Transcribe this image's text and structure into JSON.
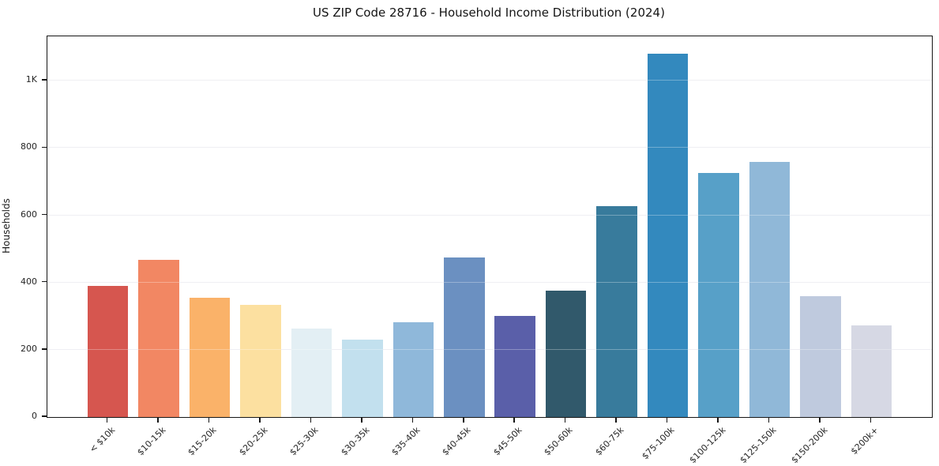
{
  "chart_data": {
    "type": "bar",
    "title": "US ZIP Code 28716 - Household Income Distribution (2024)",
    "xlabel": "",
    "ylabel": "Households",
    "categories": [
      "< $10k",
      "$10-15k",
      "$15-20k",
      "$20-25k",
      "$25-30k",
      "$30-35k",
      "$35-40k",
      "$40-45k",
      "$45-50k",
      "$50-60k",
      "$60-75k",
      "$75-100k",
      "$100-125k",
      "$125-150k",
      "$150-200k",
      "$200k+"
    ],
    "values": [
      390,
      467,
      355,
      334,
      263,
      230,
      282,
      475,
      300,
      376,
      627,
      1080,
      726,
      758,
      360,
      272
    ],
    "bar_colors": [
      "#d6564f",
      "#f28763",
      "#fab269",
      "#fce0a0",
      "#e3eff4",
      "#c2e0ee",
      "#8fb8da",
      "#6b90c1",
      "#5a5fa9",
      "#31596b",
      "#387b9c",
      "#3389be",
      "#57a0c8",
      "#90b8d8",
      "#bfcade",
      "#d6d8e4"
    ],
    "ylim": [
      0,
      1132
    ],
    "yticks": [
      {
        "value": 0,
        "label": "0"
      },
      {
        "value": 200,
        "label": "200"
      },
      {
        "value": 400,
        "label": "400"
      },
      {
        "value": 600,
        "label": "600"
      },
      {
        "value": 800,
        "label": "800"
      },
      {
        "value": 1000,
        "label": "1K"
      }
    ],
    "grid": "horizontal",
    "legend": "none",
    "colors": {
      "background": "#ffffff",
      "spine": "#161616",
      "gridline": "#e9e9ee",
      "tick_label": "#262626",
      "title": "#141414"
    }
  }
}
